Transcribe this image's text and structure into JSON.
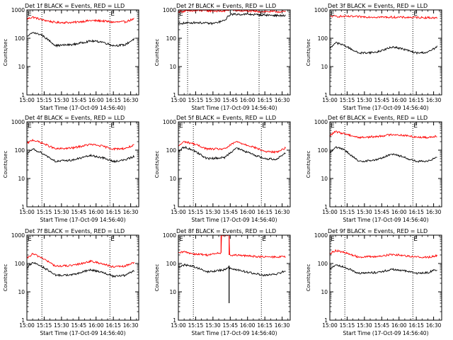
{
  "chart_data": [
    {
      "type": "line",
      "title": "Det 1f BLACK = Events, RED = LLD",
      "xlabel": "Start Time (17-Oct-09 14:56:40)",
      "ylabel": "Counts/sec",
      "x_ticks": [
        "15:00",
        "15:15",
        "15:30",
        "15:45",
        "16:00",
        "16:15",
        "16:30"
      ],
      "y_ticks": [
        "1",
        "10",
        "100",
        "1000"
      ],
      "y_scale": "log",
      "ylim": [
        1,
        1000
      ],
      "vlines": [
        "15:13",
        "16:12"
      ],
      "markers": [
        {
          "text": "E",
          "at": "16:12"
        }
      ],
      "series": [
        {
          "name": "LLD",
          "color": "#ff0000",
          "x": [
            "15:00",
            "15:05",
            "15:13",
            "15:25",
            "15:40",
            "15:55",
            "16:05",
            "16:15",
            "16:25",
            "16:33"
          ],
          "values": [
            480,
            560,
            450,
            360,
            360,
            420,
            410,
            370,
            380,
            480
          ]
        },
        {
          "name": "Events",
          "color": "#000000",
          "x": [
            "15:00",
            "15:05",
            "15:13",
            "15:25",
            "15:40",
            "15:55",
            "16:05",
            "16:15",
            "16:25",
            "16:33"
          ],
          "values": [
            110,
            160,
            130,
            55,
            60,
            80,
            75,
            55,
            58,
            95
          ]
        }
      ]
    },
    {
      "type": "line",
      "title": "Det 2f BLACK = Events, RED = LLD",
      "xlabel": "Start Time (17-Oct-09 14:56:40)",
      "ylabel": "Counts/sec",
      "x_ticks": [
        "15:00",
        "15:15",
        "15:30",
        "15:45",
        "16:00",
        "16:15",
        "16:30"
      ],
      "y_ticks": [
        "1",
        "10",
        "100",
        "1000"
      ],
      "y_scale": "log",
      "ylim": [
        1,
        1000
      ],
      "vlines": [
        "15:08",
        "16:10"
      ],
      "markers": [
        {
          "text": "E",
          "at": "16:10"
        }
      ],
      "series": [
        {
          "name": "LLD",
          "color": "#ff0000",
          "x": [
            "15:00",
            "15:20",
            "15:40",
            "15:45",
            "15:50",
            "16:10",
            "16:33"
          ],
          "values": [
            880,
            950,
            900,
            1050,
            950,
            880,
            860
          ]
        },
        {
          "name": "Events",
          "color": "#000000",
          "x": [
            "15:00",
            "15:15",
            "15:30",
            "15:40",
            "15:45",
            "16:00",
            "16:20",
            "16:33"
          ],
          "values": [
            330,
            360,
            330,
            420,
            700,
            700,
            650,
            620
          ]
        }
      ]
    },
    {
      "type": "line",
      "title": "Det 3f BLACK = Events, RED = LLD",
      "xlabel": "Start Time (17-Oct-09 14:56:40)",
      "ylabel": "Counts/sec",
      "x_ticks": [
        "15:00",
        "15:15",
        "15:30",
        "15:45",
        "16:00",
        "16:15",
        "16:30"
      ],
      "y_ticks": [
        "1",
        "10",
        "100",
        "1000"
      ],
      "y_scale": "log",
      "ylim": [
        1,
        1000
      ],
      "vlines": [
        "15:13",
        "16:12"
      ],
      "markers": [
        {
          "text": "E",
          "at": "16:12"
        }
      ],
      "series": [
        {
          "name": "LLD",
          "color": "#ff0000",
          "x": [
            "15:00",
            "15:20",
            "15:40",
            "16:00",
            "16:20",
            "16:33"
          ],
          "values": [
            600,
            580,
            560,
            550,
            540,
            520
          ]
        },
        {
          "name": "Events",
          "color": "#000000",
          "x": [
            "15:00",
            "15:05",
            "15:13",
            "15:25",
            "15:40",
            "15:55",
            "16:05",
            "16:15",
            "16:25",
            "16:33"
          ],
          "values": [
            45,
            70,
            55,
            30,
            32,
            50,
            40,
            30,
            32,
            50
          ]
        }
      ]
    },
    {
      "type": "line",
      "title": "Det 4f BLACK = Events, RED = LLD",
      "xlabel": "Start Time (17-Oct-09 14:56:40)",
      "ylabel": "Counts/sec",
      "x_ticks": [
        "15:00",
        "15:15",
        "15:30",
        "15:45",
        "16:00",
        "16:15",
        "16:30"
      ],
      "y_ticks": [
        "1",
        "10",
        "100",
        "1000"
      ],
      "y_scale": "log",
      "ylim": [
        1,
        1000
      ],
      "vlines": [
        "15:13",
        "16:12"
      ],
      "markers": [
        {
          "text": "E",
          "at": "16:12"
        }
      ],
      "series": [
        {
          "name": "LLD",
          "color": "#ff0000",
          "x": [
            "15:00",
            "15:05",
            "15:13",
            "15:25",
            "15:40",
            "15:55",
            "16:05",
            "16:15",
            "16:25",
            "16:33"
          ],
          "values": [
            170,
            230,
            180,
            110,
            120,
            160,
            140,
            110,
            115,
            150
          ]
        },
        {
          "name": "Events",
          "color": "#000000",
          "x": [
            "15:00",
            "15:05",
            "15:13",
            "15:25",
            "15:40",
            "15:55",
            "16:05",
            "16:15",
            "16:25",
            "16:33"
          ],
          "values": [
            70,
            110,
            80,
            40,
            45,
            65,
            55,
            40,
            45,
            60
          ]
        }
      ]
    },
    {
      "type": "line",
      "title": "Det 5f BLACK = Events, RED = LLD",
      "xlabel": "Start Time (17-Oct-09 14:56:40)",
      "ylabel": "Counts/sec",
      "x_ticks": [
        "15:00",
        "15:15",
        "15:30",
        "15:45",
        "16:00",
        "16:15",
        "16:30"
      ],
      "y_ticks": [
        "1",
        "10",
        "100",
        "1000"
      ],
      "y_scale": "log",
      "ylim": [
        1,
        1000
      ],
      "vlines": [
        "15:13",
        "16:12"
      ],
      "markers": [
        {
          "text": "E",
          "at": "16:12"
        }
      ],
      "series": [
        {
          "name": "LLD",
          "color": "#ff0000",
          "x": [
            "15:00",
            "15:05",
            "15:13",
            "15:25",
            "15:40",
            "15:50",
            "16:05",
            "16:15",
            "16:25",
            "16:33"
          ],
          "values": [
            140,
            200,
            170,
            110,
            110,
            200,
            130,
            90,
            85,
            120
          ]
        },
        {
          "name": "Events",
          "color": "#000000",
          "x": [
            "15:00",
            "15:05",
            "15:13",
            "15:25",
            "15:40",
            "15:50",
            "16:05",
            "16:15",
            "16:25",
            "16:33"
          ],
          "values": [
            90,
            130,
            100,
            50,
            55,
            120,
            70,
            50,
            48,
            80
          ]
        }
      ]
    },
    {
      "type": "line",
      "title": "Det 6f BLACK = Events, RED = LLD",
      "xlabel": "Start Time (17-Oct-09 14:56:40)",
      "ylabel": "Counts/sec",
      "x_ticks": [
        "15:00",
        "15:15",
        "15:30",
        "15:45",
        "16:00",
        "16:15",
        "16:30"
      ],
      "y_ticks": [
        "1",
        "10",
        "100",
        "1000"
      ],
      "y_scale": "log",
      "ylim": [
        1,
        1000
      ],
      "vlines": [
        "15:13",
        "16:12"
      ],
      "markers": [
        {
          "text": "E",
          "at": "16:12"
        }
      ],
      "series": [
        {
          "name": "LLD",
          "color": "#ff0000",
          "x": [
            "15:00",
            "15:05",
            "15:13",
            "15:25",
            "15:40",
            "15:55",
            "16:05",
            "16:15",
            "16:25",
            "16:33"
          ],
          "values": [
            330,
            450,
            380,
            280,
            300,
            360,
            330,
            290,
            280,
            320
          ]
        },
        {
          "name": "Events",
          "color": "#000000",
          "x": [
            "15:00",
            "15:05",
            "15:13",
            "15:25",
            "15:40",
            "15:55",
            "16:05",
            "16:15",
            "16:25",
            "16:33"
          ],
          "values": [
            80,
            130,
            100,
            40,
            45,
            75,
            55,
            40,
            40,
            60
          ]
        }
      ]
    },
    {
      "type": "line",
      "title": "Det 7f BLACK = Events, RED = LLD",
      "xlabel": "Start Time (17-Oct-09 14:56:40)",
      "ylabel": "Counts/sec",
      "x_ticks": [
        "15:00",
        "15:15",
        "15:30",
        "15:45",
        "16:00",
        "16:15",
        "16:30"
      ],
      "y_ticks": [
        "1",
        "10",
        "100",
        "1000"
      ],
      "y_scale": "log",
      "ylim": [
        1,
        1000
      ],
      "vlines": [
        "15:13",
        "16:12"
      ],
      "markers": [
        {
          "text": "E",
          "at": "16:12"
        }
      ],
      "series": [
        {
          "name": "LLD",
          "color": "#ff0000",
          "x": [
            "15:00",
            "15:05",
            "15:13",
            "15:25",
            "15:40",
            "15:55",
            "16:05",
            "16:15",
            "16:25",
            "16:33"
          ],
          "values": [
            150,
            220,
            160,
            80,
            85,
            120,
            100,
            75,
            80,
            110
          ]
        },
        {
          "name": "Events",
          "color": "#000000",
          "x": [
            "15:00",
            "15:05",
            "15:13",
            "15:25",
            "15:40",
            "15:55",
            "16:05",
            "16:15",
            "16:25",
            "16:33"
          ],
          "values": [
            70,
            110,
            80,
            38,
            40,
            60,
            50,
            35,
            38,
            55
          ]
        }
      ]
    },
    {
      "type": "line",
      "title": "Det 8f BLACK = Events, RED = LLD",
      "xlabel": "Start Time (17-Oct-09 14:56:40)",
      "ylabel": "Counts/sec",
      "x_ticks": [
        "15:00",
        "15:15",
        "15:30",
        "15:45",
        "16:00",
        "16:15",
        "16:30"
      ],
      "y_ticks": [
        "1",
        "10",
        "100",
        "1000"
      ],
      "y_scale": "log",
      "ylim": [
        1,
        1000
      ],
      "vlines": [
        "15:13",
        "16:12"
      ],
      "markers": [
        {
          "text": "E",
          "at": "16:12"
        }
      ],
      "series": [
        {
          "name": "LLD",
          "color": "#ff0000",
          "x": [
            "15:00",
            "15:05",
            "15:13",
            "15:25",
            "15:37",
            "15:37",
            "15:44",
            "15:44",
            "15:55",
            "16:05",
            "16:15",
            "16:25",
            "16:33"
          ],
          "values": [
            230,
            260,
            220,
            200,
            240,
            1000,
            1000,
            200,
            190,
            180,
            170,
            170,
            175
          ]
        },
        {
          "name": "Events",
          "color": "#000000",
          "x": [
            "15:00",
            "15:05",
            "15:13",
            "15:25",
            "15:40",
            "15:44",
            "15:44",
            "15:44",
            "15:55",
            "16:05",
            "16:15",
            "16:25",
            "16:33"
          ],
          "values": [
            70,
            90,
            80,
            50,
            60,
            80,
            4,
            70,
            55,
            45,
            38,
            42,
            55
          ]
        }
      ]
    },
    {
      "type": "line",
      "title": "Det 9f BLACK = Events, RED = LLD",
      "xlabel": "Start Time (17-Oct-09 14:56:40)",
      "ylabel": "Counts/sec",
      "x_ticks": [
        "15:00",
        "15:15",
        "15:30",
        "15:45",
        "16:00",
        "16:15",
        "16:30"
      ],
      "y_ticks": [
        "1",
        "10",
        "100",
        "1000"
      ],
      "y_scale": "log",
      "ylim": [
        1,
        1000
      ],
      "vlines": [
        "15:13",
        "16:12"
      ],
      "markers": [
        {
          "text": "E",
          "at": "16:12"
        }
      ],
      "series": [
        {
          "name": "LLD",
          "color": "#ff0000",
          "x": [
            "15:00",
            "15:05",
            "15:13",
            "15:25",
            "15:40",
            "15:55",
            "16:05",
            "16:15",
            "16:25",
            "16:33"
          ],
          "values": [
            220,
            290,
            240,
            170,
            175,
            210,
            190,
            170,
            165,
            190
          ]
        },
        {
          "name": "Events",
          "color": "#000000",
          "x": [
            "15:00",
            "15:05",
            "15:13",
            "15:25",
            "15:40",
            "15:55",
            "16:05",
            "16:15",
            "16:25",
            "16:33"
          ],
          "values": [
            65,
            90,
            75,
            45,
            48,
            62,
            55,
            45,
            48,
            62
          ]
        }
      ]
    }
  ]
}
